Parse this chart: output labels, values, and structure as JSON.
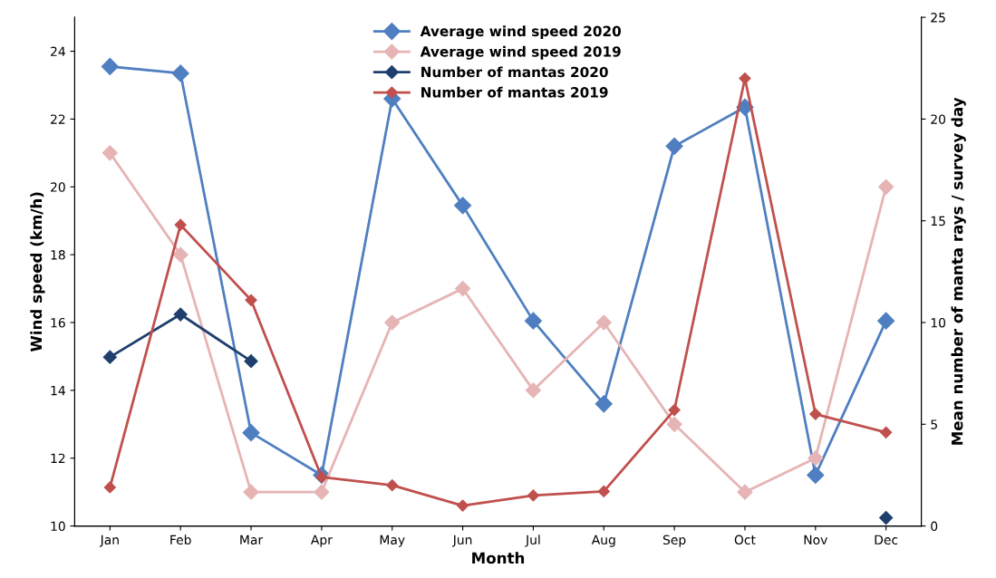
{
  "chart_data": {
    "type": "line",
    "xlabel": "Month",
    "ylabel": "Wind speed (km/h)",
    "y2label": "Mean number of manta rays / survey day",
    "categories": [
      "Jan",
      "Feb",
      "Mar",
      "Apr",
      "May",
      "Jun",
      "Jul",
      "Aug",
      "Sep",
      "Oct",
      "Nov",
      "Dec"
    ],
    "series": [
      {
        "name": "Average wind speed 2020",
        "color": "#4f7fc0",
        "values": [
          23.55,
          23.35,
          12.75,
          11.5,
          22.6,
          19.45,
          16.05,
          13.6,
          21.2,
          22.35,
          11.5,
          16.05
        ]
      },
      {
        "name": "Average wind speed 2019",
        "color": "#e6b4b4",
        "values": [
          21,
          18,
          11,
          11,
          16,
          17,
          14,
          16,
          13,
          11,
          12,
          20
        ]
      },
      {
        "name": "Number of mantas 2020",
        "color": "#1f3f6e",
        "axis": "y2",
        "values": [
          8.3,
          10.4,
          8.1,
          null,
          null,
          null,
          null,
          null,
          null,
          null,
          null,
          0.4
        ]
      },
      {
        "name": "Number of mantas 2019",
        "color": "#c0504d",
        "axis": "y2",
        "values": [
          1.9,
          14.8,
          11.1,
          2.4,
          2.0,
          1.0,
          1.5,
          1.7,
          5.7,
          22.0,
          5.5,
          4.6
        ]
      }
    ],
    "ylim": [
      10,
      25
    ],
    "yticks": [
      10,
      12,
      14,
      16,
      18,
      20,
      22,
      24
    ],
    "y2lim": [
      0,
      25
    ],
    "y2ticks": [
      0,
      5,
      10,
      15,
      20,
      25
    ],
    "marker": "diamond",
    "line_style": "solid",
    "grid": false,
    "legend": "top"
  }
}
